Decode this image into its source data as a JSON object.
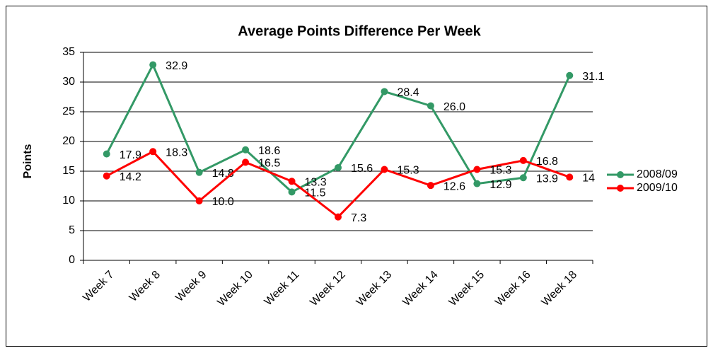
{
  "chart_data": {
    "type": "line",
    "title": "Average Points Difference Per Week",
    "y_label": "Points",
    "categories": [
      "Week 7",
      "Week 8",
      "Week 9",
      "Week 10",
      "Week 11",
      "Week 12",
      "Week 13",
      "Week 14",
      "Week 15",
      "Week 16",
      "Week 18"
    ],
    "series": [
      {
        "name": "2008/09",
        "color": "#339966",
        "values": [
          17.9,
          32.9,
          14.8,
          18.6,
          11.5,
          15.6,
          28.4,
          26.0,
          12.9,
          13.9,
          31.1
        ],
        "value_labels": [
          "17.9",
          "32.9",
          "14.8",
          "18.6",
          "11.5",
          "15.6",
          "28.4",
          "26.0",
          "12.9",
          "13.9",
          "31.1"
        ]
      },
      {
        "name": "2009/10",
        "color": "#ff0000",
        "values": [
          14.2,
          18.3,
          10.0,
          16.5,
          13.3,
          7.3,
          15.3,
          12.6,
          15.3,
          16.8,
          14
        ],
        "value_labels": [
          "14.2",
          "18.3",
          "10.0",
          "16.5",
          "13.3",
          "7.3",
          "15.3",
          "12.6",
          "15.3",
          "16.8",
          "14"
        ]
      }
    ],
    "ylim": [
      0,
      35
    ],
    "yticks": [
      0,
      5,
      10,
      15,
      20,
      25,
      30,
      35
    ],
    "grid": true,
    "legend": "right"
  }
}
